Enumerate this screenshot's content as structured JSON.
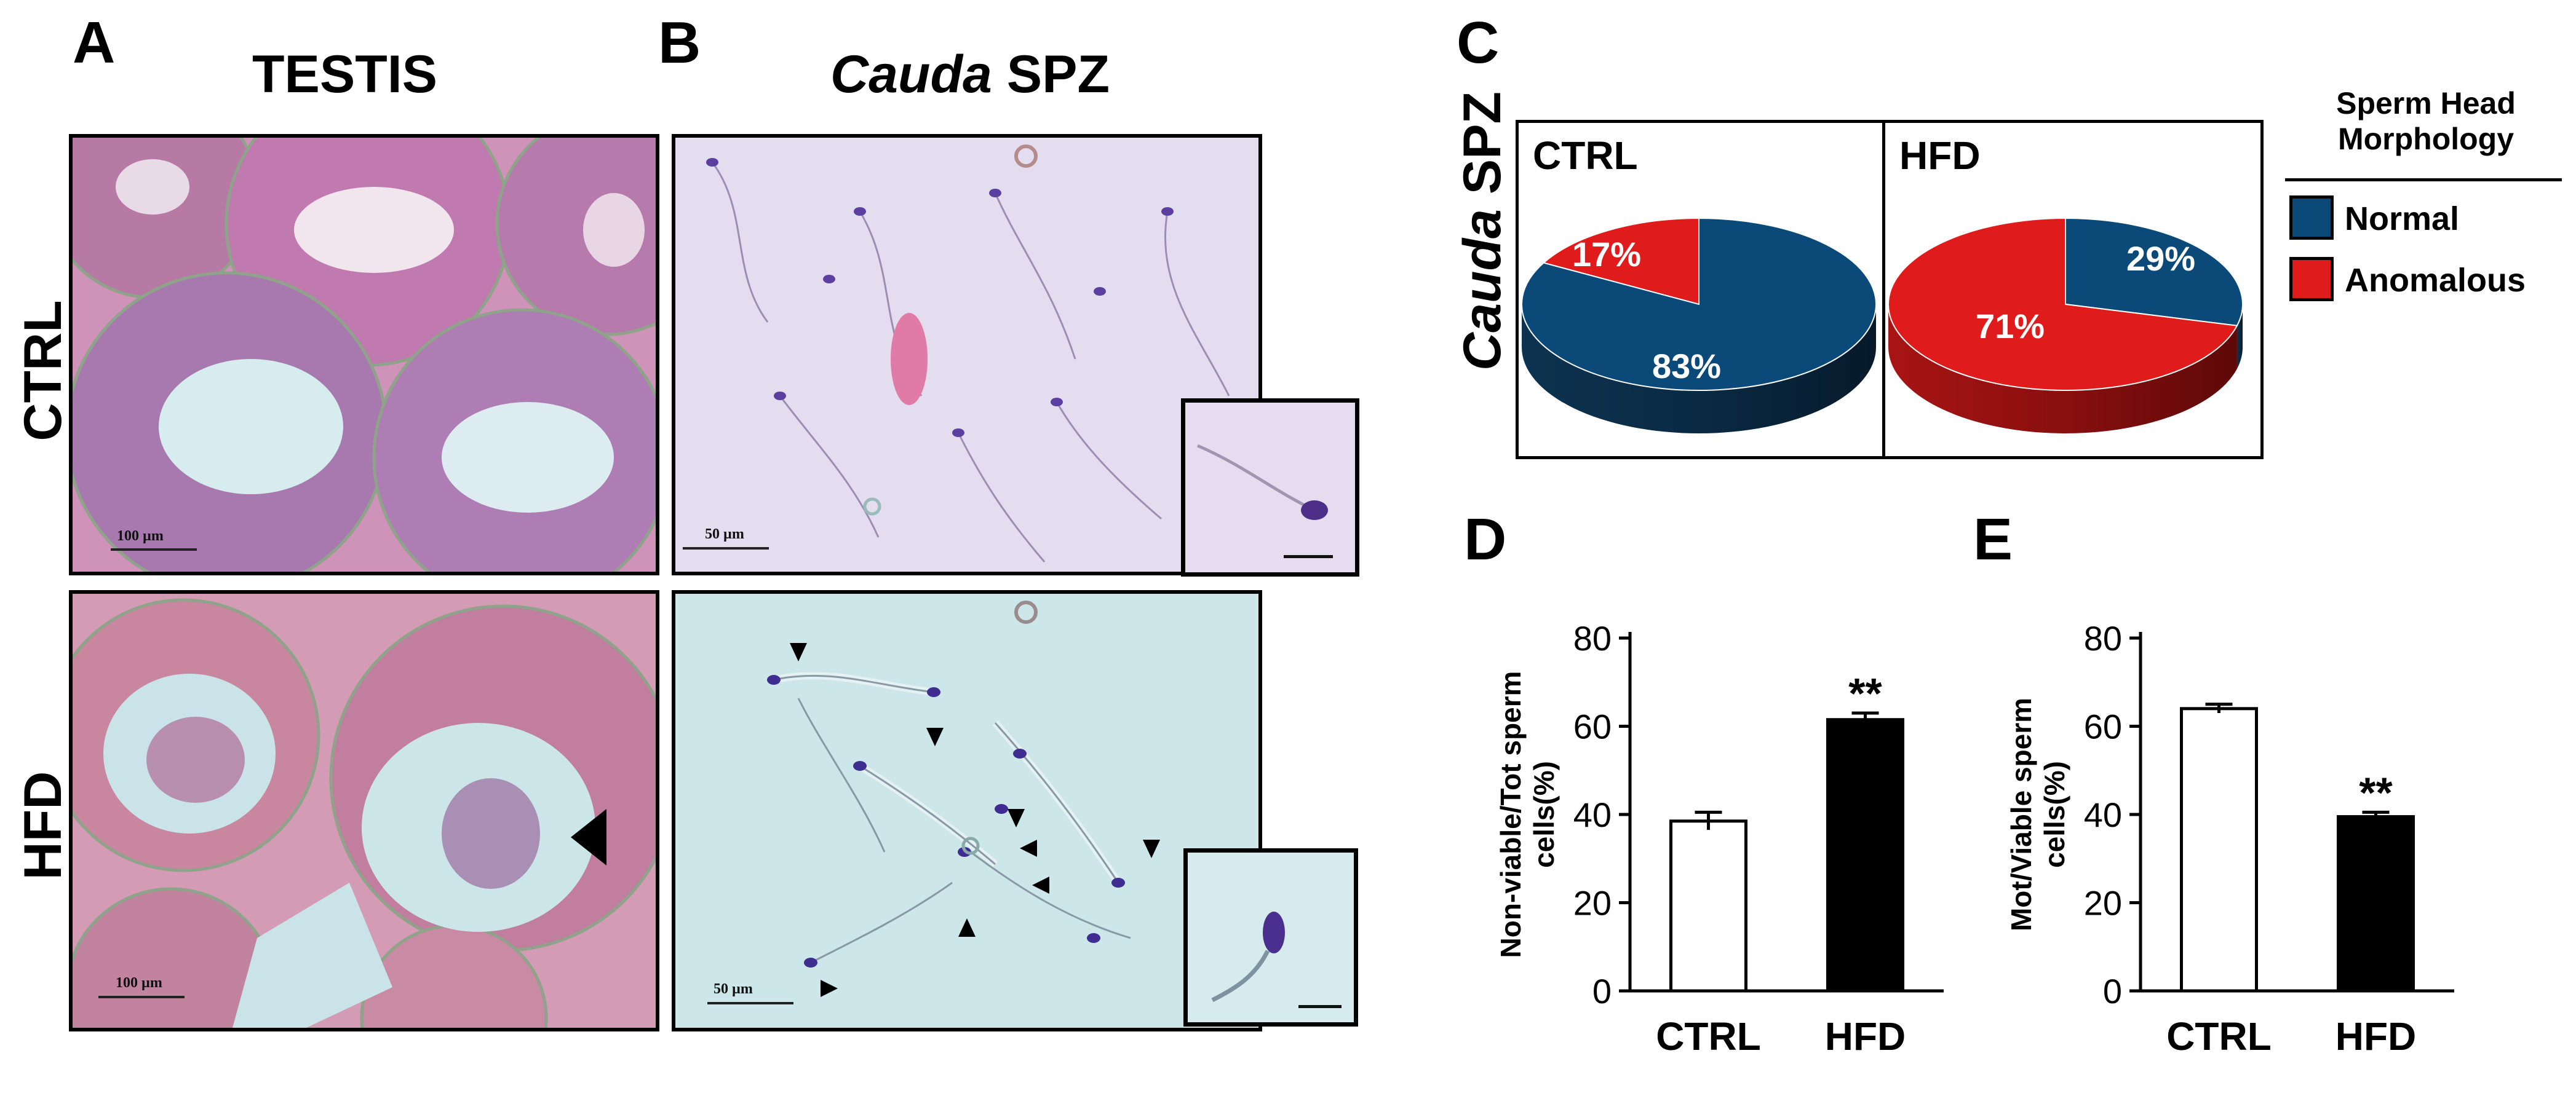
{
  "panel_a": {
    "letter": "A",
    "title": "TESTIS",
    "rows": [
      "CTRL",
      "HFD"
    ],
    "scalebars": [
      "100 µm",
      "100 µm"
    ]
  },
  "panel_b": {
    "letter": "B",
    "title_italic": "Cauda",
    "title_rest": " SPZ",
    "scalebars": [
      "50 µm",
      "50 µm"
    ]
  },
  "panel_c": {
    "letter": "C",
    "side_italic": "Cauda",
    "side_rest": " SPZ",
    "colors": {
      "normal": "#0b4a78",
      "anomalous": "#e01b1b"
    },
    "legend": {
      "title_line1": "Sperm Head",
      "title_line2": "Morphology",
      "items": [
        {
          "label": "Normal",
          "color": "#0b4a78"
        },
        {
          "label": "Anomalous",
          "color": "#e01b1b"
        }
      ]
    }
  },
  "panel_d": {
    "letter": "D"
  },
  "panel_e": {
    "letter": "E"
  },
  "chart_data": [
    {
      "type": "pie",
      "title": "CTRL",
      "labels": [
        "Normal",
        "Anomalous"
      ],
      "values": [
        83,
        17
      ],
      "value_labels": [
        "83%",
        "17%"
      ]
    },
    {
      "type": "pie",
      "title": "HFD",
      "labels": [
        "Normal",
        "Anomalous"
      ],
      "values": [
        29,
        71
      ],
      "value_labels": [
        "29%",
        "71%"
      ]
    },
    {
      "type": "bar",
      "categories": [
        "CTRL",
        "HFD"
      ],
      "values": [
        38.5,
        61.5
      ],
      "errors": [
        2,
        1.5
      ],
      "bar_fills": [
        "#ffffff",
        "#000000"
      ],
      "significance": [
        "",
        "**"
      ],
      "ylabel_line1": "Non-viable/Tot sperm",
      "ylabel_line2": "cells(%)",
      "ylim": [
        0,
        80
      ],
      "yticks": [
        0,
        20,
        40,
        60,
        80
      ]
    },
    {
      "type": "bar",
      "categories": [
        "CTRL",
        "HFD"
      ],
      "values": [
        64,
        39.5
      ],
      "errors": [
        1,
        1
      ],
      "bar_fills": [
        "#ffffff",
        "#000000"
      ],
      "significance": [
        "",
        "**"
      ],
      "ylabel_line1": "Mot/Viable sperm",
      "ylabel_line2": "cells(%)",
      "ylim": [
        0,
        80
      ],
      "yticks": [
        0,
        20,
        40,
        60,
        80
      ]
    }
  ]
}
